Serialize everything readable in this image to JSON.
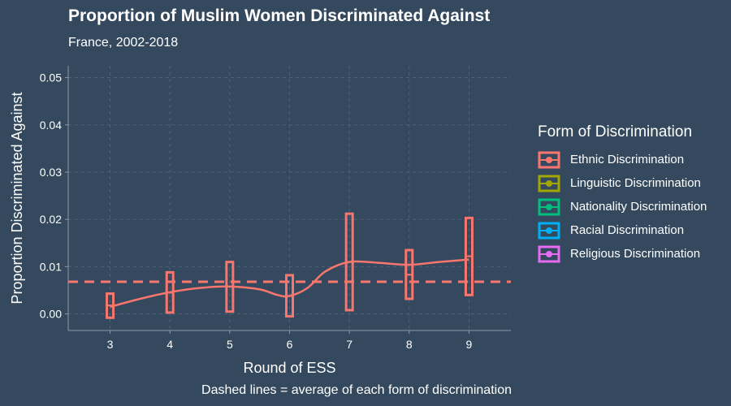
{
  "title": "Proportion of Muslim Women Discriminated Against",
  "subtitle": "France, 2002-2018",
  "caption": "Dashed lines = average of each form of discrimination",
  "legend": {
    "title": "Form of Discrimination",
    "items": [
      {
        "label": "Ethnic Discrimination",
        "color": "#f8766d"
      },
      {
        "label": "Linguistic Discrimination",
        "color": "#a3a500"
      },
      {
        "label": "Nationality Discrimination",
        "color": "#00bf7d"
      },
      {
        "label": "Racial Discrimination",
        "color": "#00b0f6"
      },
      {
        "label": "Religious Discrimination",
        "color": "#e76bf3"
      }
    ]
  },
  "chart_data": {
    "type": "line",
    "xlabel": "Round of ESS",
    "ylabel": "Proportion Discriminated Against",
    "xlim": [
      2.3,
      9.7
    ],
    "ylim": [
      -0.0035,
      0.0525
    ],
    "x_ticks": [
      3,
      4,
      5,
      6,
      7,
      8,
      9
    ],
    "y_ticks": [
      0.0,
      0.01,
      0.02,
      0.03,
      0.04,
      0.05
    ],
    "y_tick_labels": [
      "0.00",
      "0.01",
      "0.02",
      "0.03",
      "0.04",
      "0.05"
    ],
    "grid": true,
    "legend_position": "right",
    "series": [
      {
        "name": "Ethnic Discrimination",
        "color": "#f8766d",
        "x": [
          3,
          4,
          5,
          6,
          7,
          8,
          9
        ],
        "values": [
          0.0018,
          0.0045,
          0.0058,
          0.0038,
          0.011,
          0.0083,
          0.0122
        ],
        "lower": [
          -0.0008,
          0.0003,
          0.0005,
          -0.0005,
          0.0008,
          0.0032,
          0.004
        ],
        "upper": [
          0.0043,
          0.0088,
          0.011,
          0.0082,
          0.0212,
          0.0135,
          0.0203
        ],
        "smooth": [
          [
            3.0,
            0.0015
          ],
          [
            3.5,
            0.0032
          ],
          [
            4.0,
            0.0046
          ],
          [
            4.5,
            0.0055
          ],
          [
            5.0,
            0.0058
          ],
          [
            5.5,
            0.0052
          ],
          [
            5.8,
            0.004
          ],
          [
            6.0,
            0.0038
          ],
          [
            6.3,
            0.0055
          ],
          [
            6.6,
            0.009
          ],
          [
            7.0,
            0.011
          ],
          [
            7.5,
            0.0108
          ],
          [
            8.0,
            0.0104
          ],
          [
            8.5,
            0.011
          ],
          [
            9.0,
            0.0115
          ]
        ],
        "mean": 0.0068
      }
    ]
  }
}
